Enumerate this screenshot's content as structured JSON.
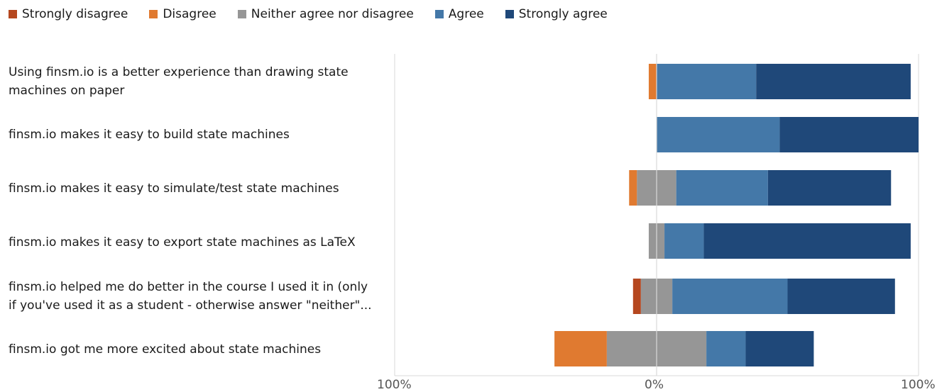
{
  "chart_data": {
    "type": "bar",
    "orientation": "horizontal",
    "stacked": "diverging",
    "legend_position": "top-left",
    "grid": false,
    "xlim": [
      -100,
      100
    ],
    "x_tick_labels": [
      "100%",
      "0%",
      "100%"
    ],
    "categories": [
      "Using finsm.io is a better experience than drawing state machines on paper",
      "finsm.io makes it easy to build state machines",
      "finsm.io makes it easy to simulate/test state machines",
      "finsm.io makes it easy to export state machines as LaTeX",
      "finsm.io helped me do better in the course I used it in (only if you've used it as a student - otherwise answer \"neither\"...",
      "finsm.io got me more excited about state machines"
    ],
    "series": [
      {
        "name": "Strongly disagree",
        "color": "#b5471f",
        "values": [
          0,
          0,
          0,
          0,
          3,
          0
        ]
      },
      {
        "name": "Disagree",
        "color": "#e07a30",
        "values": [
          3,
          0,
          3,
          0,
          0,
          20
        ]
      },
      {
        "name": "Neither agree nor disagree",
        "color": "#969696",
        "values": [
          0,
          0,
          15,
          6,
          12,
          38
        ]
      },
      {
        "name": "Agree",
        "color": "#4478a8",
        "values": [
          38,
          47,
          35,
          15,
          44,
          15
        ]
      },
      {
        "name": "Strongly agree",
        "color": "#1f4879",
        "values": [
          59,
          53,
          47,
          79,
          41,
          26
        ]
      }
    ]
  }
}
